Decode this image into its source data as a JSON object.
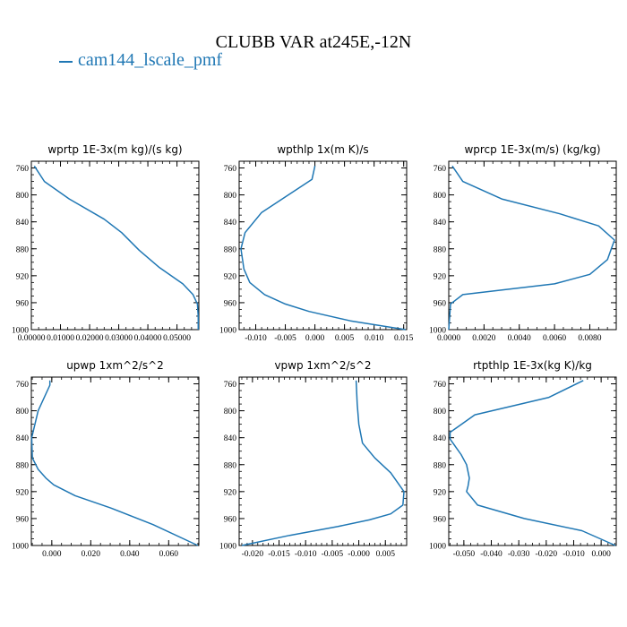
{
  "title": "CLUBB VAR at245E,-12N",
  "legend": {
    "label": "cam144_lscale_pmf",
    "color": "#1f77b4"
  },
  "chart_data": [
    {
      "type": "line",
      "title": "wprtp  1E-3x(m kg)/(s kg)",
      "xlim": [
        0.0,
        0.0575
      ],
      "ylim": [
        1000,
        750
      ],
      "xticks": [
        0.0,
        0.01,
        0.02,
        0.03,
        0.04,
        0.05
      ],
      "xtick_labels": [
        "0.00000",
        "0.01000",
        "0.02000",
        "0.03000",
        "0.04000",
        "0.05000"
      ],
      "xminor": 0.0025,
      "yticks": [
        760,
        800,
        840,
        880,
        920,
        960,
        1000
      ],
      "series": [
        {
          "x": [
            0.001,
            0.0045,
            0.013,
            0.025,
            0.031,
            0.037,
            0.044,
            0.052,
            0.0555,
            0.057,
            0.0573,
            0.0573
          ],
          "y": [
            757,
            780,
            806,
            836,
            856,
            882,
            908,
            932,
            948,
            962,
            980,
            1000
          ]
        }
      ]
    },
    {
      "type": "line",
      "title": "wpthlp  1x(m K)/s",
      "xlim": [
        -0.0128,
        0.0155
      ],
      "ylim": [
        1000,
        750
      ],
      "xticks": [
        -0.01,
        -0.005,
        0.0,
        0.005,
        0.01,
        0.015
      ],
      "xtick_labels": [
        "-0.010",
        "-0.005",
        "0.000",
        "0.005",
        "0.010",
        "0.015"
      ],
      "xminor": 0.001,
      "yticks": [
        760,
        800,
        840,
        880,
        920,
        960,
        1000
      ],
      "series": [
        {
          "x": [
            0.0,
            -0.0005,
            -0.009,
            -0.0118,
            -0.0125,
            -0.012,
            -0.011,
            -0.0085,
            -0.005,
            -0.001,
            0.006,
            0.0153
          ],
          "y": [
            757,
            777,
            826,
            856,
            880,
            910,
            930,
            948,
            962,
            973,
            987,
            1000
          ]
        }
      ]
    },
    {
      "type": "line",
      "title": "wprcp  1E-3x(m/s) (kg/kg)",
      "xlim": [
        0.0,
        0.0095
      ],
      "ylim": [
        1000,
        750
      ],
      "xticks": [
        0.0,
        0.002,
        0.004,
        0.006,
        0.008
      ],
      "xtick_labels": [
        "0.0000",
        "0.0020",
        "0.0040",
        "0.0060",
        "0.0080"
      ],
      "xminor": 0.0005,
      "yticks": [
        760,
        800,
        840,
        880,
        920,
        960,
        1000
      ],
      "series": [
        {
          "x": [
            0.0002,
            0.0008,
            0.003,
            0.0063,
            0.0085,
            0.0094,
            0.009,
            0.008,
            0.006,
            0.0008,
            0.0001,
            0.0
          ],
          "y": [
            757,
            780,
            806,
            828,
            846,
            867,
            896,
            918,
            932,
            948,
            962,
            1000
          ]
        }
      ]
    },
    {
      "type": "line",
      "title": "upwp  1xm^2/s^2",
      "xlim": [
        -0.0105,
        0.0755
      ],
      "ylim": [
        1000,
        750
      ],
      "xticks": [
        0.0,
        0.02,
        0.04,
        0.06
      ],
      "xtick_labels": [
        "0.000",
        "0.020",
        "0.040",
        "0.060"
      ],
      "xminor": 0.005,
      "yticks": [
        760,
        800,
        840,
        880,
        920,
        960,
        1000
      ],
      "series": [
        {
          "x": [
            -0.001,
            -0.001,
            -0.007,
            -0.0103,
            -0.01,
            -0.007,
            -0.003,
            0.001,
            0.012,
            0.03,
            0.052,
            0.075
          ],
          "y": [
            755,
            762,
            800,
            840,
            870,
            887,
            900,
            910,
            926,
            944,
            969,
            1000
          ]
        }
      ]
    },
    {
      "type": "line",
      "title": "vpwp  1xm^2/s^2",
      "xlim": [
        -0.0225,
        0.009
      ],
      "ylim": [
        1000,
        750
      ],
      "xticks": [
        -0.02,
        -0.015,
        -0.01,
        -0.005,
        0.0,
        0.005
      ],
      "xtick_labels": [
        "-0.020",
        "-0.015",
        "-0.010",
        "-0.005",
        "-0.000",
        "0.005"
      ],
      "xminor": 0.001,
      "yticks": [
        760,
        800,
        840,
        880,
        920,
        960,
        1000
      ],
      "series": [
        {
          "x": [
            -0.0005,
            -0.0003,
            0.0,
            0.0007,
            0.003,
            0.006,
            0.0085,
            0.0083,
            0.006,
            0.002,
            -0.004,
            -0.013,
            -0.022
          ],
          "y": [
            755,
            790,
            820,
            848,
            870,
            892,
            920,
            940,
            953,
            962,
            972,
            985,
            1000
          ]
        }
      ]
    },
    {
      "type": "line",
      "title": "rtpthlp  1E-3x(kg K)/kg",
      "xlim": [
        -0.0555,
        0.0055
      ],
      "ylim": [
        1000,
        750
      ],
      "xticks": [
        -0.05,
        -0.04,
        -0.03,
        -0.02,
        -0.01,
        0.0
      ],
      "xtick_labels": [
        "-0.050",
        "-0.040",
        "-0.030",
        "-0.020",
        "-0.010",
        "0.000"
      ],
      "xminor": 0.0025,
      "yticks": [
        760,
        800,
        840,
        880,
        920,
        960,
        1000
      ],
      "series": [
        {
          "x": [
            -0.0065,
            -0.019,
            -0.046,
            -0.055,
            -0.055,
            -0.051,
            -0.049,
            -0.048,
            -0.0485,
            -0.049,
            -0.045,
            -0.028,
            -0.007,
            0.0052
          ],
          "y": [
            755,
            780,
            806,
            832,
            842,
            865,
            880,
            900,
            912,
            920,
            940,
            960,
            978,
            1000
          ]
        }
      ]
    }
  ]
}
